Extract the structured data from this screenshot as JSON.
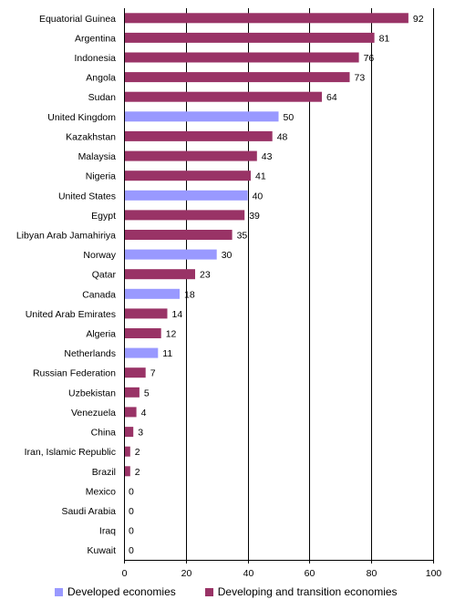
{
  "chart_data": {
    "type": "bar",
    "orientation": "horizontal",
    "title": "",
    "xlabel": "",
    "ylabel": "",
    "xlim": [
      0,
      100
    ],
    "x_ticks": [
      "0",
      "20",
      "40",
      "60",
      "80",
      "100"
    ],
    "grid": "vertical lines at 20, 40, 60, 80, 100",
    "legend_position": "bottom",
    "colors": {
      "developed": "#9999ff",
      "developing": "#993366",
      "gridline": "#000000"
    },
    "legend": [
      {
        "key": "developed",
        "label": "Developed economies"
      },
      {
        "key": "developing",
        "label": "Developing and transition economies"
      }
    ],
    "bars": [
      {
        "category": "Equatorial Guinea",
        "value": 92,
        "label": "92",
        "group": "developing"
      },
      {
        "category": "Argentina",
        "value": 81,
        "label": "81",
        "group": "developing"
      },
      {
        "category": "Indonesia",
        "value": 76,
        "label": "76",
        "group": "developing"
      },
      {
        "category": "Angola",
        "value": 73,
        "label": "73",
        "group": "developing"
      },
      {
        "category": "Sudan",
        "value": 64,
        "label": "64",
        "group": "developing"
      },
      {
        "category": "United Kingdom",
        "value": 50,
        "label": "50",
        "group": "developed"
      },
      {
        "category": "Kazakhstan",
        "value": 48,
        "label": "48",
        "group": "developing"
      },
      {
        "category": "Malaysia",
        "value": 43,
        "label": "43",
        "group": "developing"
      },
      {
        "category": "Nigeria",
        "value": 41,
        "label": "41",
        "group": "developing"
      },
      {
        "category": "United States",
        "value": 40,
        "label": "40",
        "group": "developed"
      },
      {
        "category": "Egypt",
        "value": 39,
        "label": "39",
        "group": "developing"
      },
      {
        "category": "Libyan Arab Jamahiriya",
        "value": 35,
        "label": "35",
        "group": "developing"
      },
      {
        "category": "Norway",
        "value": 30,
        "label": "30",
        "group": "developed"
      },
      {
        "category": "Qatar",
        "value": 23,
        "label": "23",
        "group": "developing"
      },
      {
        "category": "Canada",
        "value": 18,
        "label": "18",
        "group": "developed"
      },
      {
        "category": "United Arab Emirates",
        "value": 14,
        "label": "14",
        "group": "developing"
      },
      {
        "category": "Algeria",
        "value": 12,
        "label": "12",
        "group": "developing"
      },
      {
        "category": "Netherlands",
        "value": 11,
        "label": "11",
        "group": "developed"
      },
      {
        "category": "Russian Federation",
        "value": 7,
        "label": "7",
        "group": "developing"
      },
      {
        "category": "Uzbekistan",
        "value": 5,
        "label": "5",
        "group": "developing"
      },
      {
        "category": "Venezuela",
        "value": 4,
        "label": "4",
        "group": "developing"
      },
      {
        "category": "China",
        "value": 3,
        "label": "3",
        "group": "developing"
      },
      {
        "category": "Iran, Islamic Republic",
        "value": 2,
        "label": "2",
        "group": "developing"
      },
      {
        "category": "Brazil",
        "value": 2,
        "label": "2",
        "group": "developing"
      },
      {
        "category": "Mexico",
        "value": 0,
        "label": "0",
        "group": "developing"
      },
      {
        "category": "Saudi Arabia",
        "value": 0,
        "label": "0",
        "group": "developing"
      },
      {
        "category": "Iraq",
        "value": 0,
        "label": "0",
        "group": "developing"
      },
      {
        "category": "Kuwait",
        "value": 0,
        "label": "0",
        "group": "developing"
      }
    ]
  }
}
